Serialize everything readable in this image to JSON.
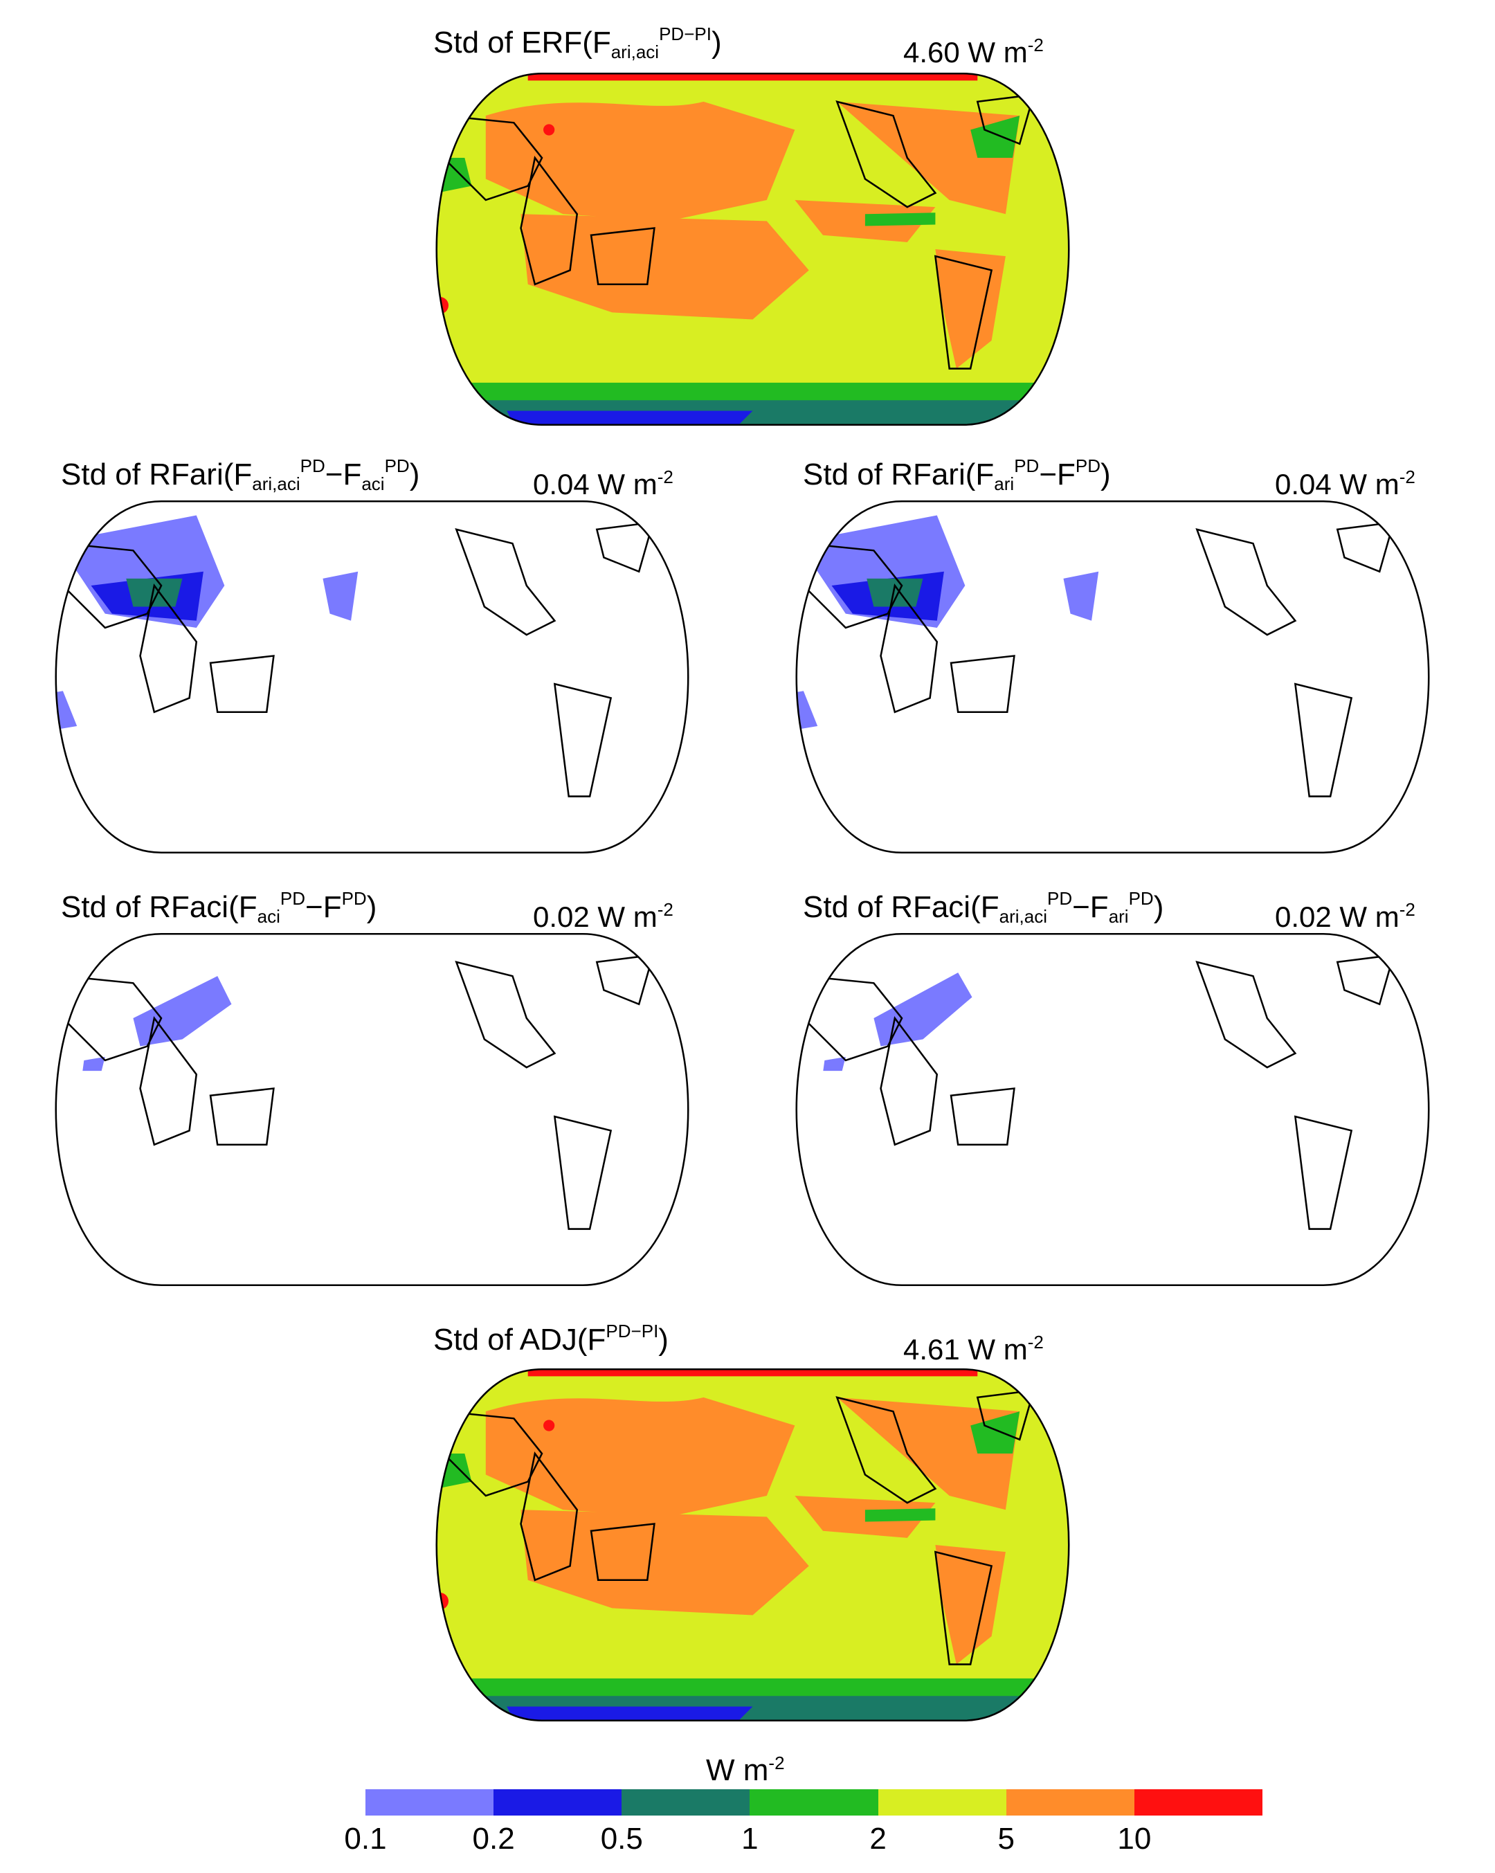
{
  "panels": [
    {
      "id": "erf",
      "pre": "Std of ERF(F",
      "sub": "ari,aci",
      "sup": "PD−PI",
      "mid": "",
      "sub2": "",
      "sup2": "",
      "post": ")",
      "value": "4.60 W m",
      "value_exp": "-2"
    },
    {
      "id": "rfari1",
      "pre": "Std of RFari(F",
      "sub": "ari,aci",
      "sup": "PD",
      "mid": "−F",
      "sub2": "aci",
      "sup2": "PD",
      "post": ")",
      "value": "0.04 W m",
      "value_exp": "-2"
    },
    {
      "id": "rfari2",
      "pre": "Std of RFari(F",
      "sub": "ari",
      "sup": "PD",
      "mid": "−F",
      "sub2": "",
      "sup2": "PD",
      "post": ")",
      "value": "0.04 W m",
      "value_exp": "-2"
    },
    {
      "id": "rfaci1",
      "pre": "Std of RFaci(F",
      "sub": "aci",
      "sup": "PD",
      "mid": "−F",
      "sub2": "",
      "sup2": "PD",
      "post": ")",
      "value": "0.02 W m",
      "value_exp": "-2"
    },
    {
      "id": "rfaci2",
      "pre": "Std of RFaci(F",
      "sub": "ari,aci",
      "sup": "PD",
      "mid": "−F",
      "sub2": "ari",
      "sup2": "PD",
      "post": ")",
      "value": "0.02 W m",
      "value_exp": "-2"
    },
    {
      "id": "adj",
      "pre": "Std of ADJ(F",
      "sub": "",
      "sup": "PD−PI",
      "mid": "",
      "sub2": "",
      "sup2": "",
      "post": ")",
      "value": "4.61 W m",
      "value_exp": "-2"
    }
  ],
  "colorbar": {
    "unit": "W m",
    "unit_exp": "-2",
    "ticks": [
      "0.1",
      "0.2",
      "0.5",
      "1",
      "2",
      "5",
      "10"
    ],
    "colors": [
      "#7a7aff",
      "#1a1ae6",
      "#1a7a66",
      "#22bb22",
      "#d8ee22",
      "#ff8c2a",
      "#ff1010"
    ]
  }
}
